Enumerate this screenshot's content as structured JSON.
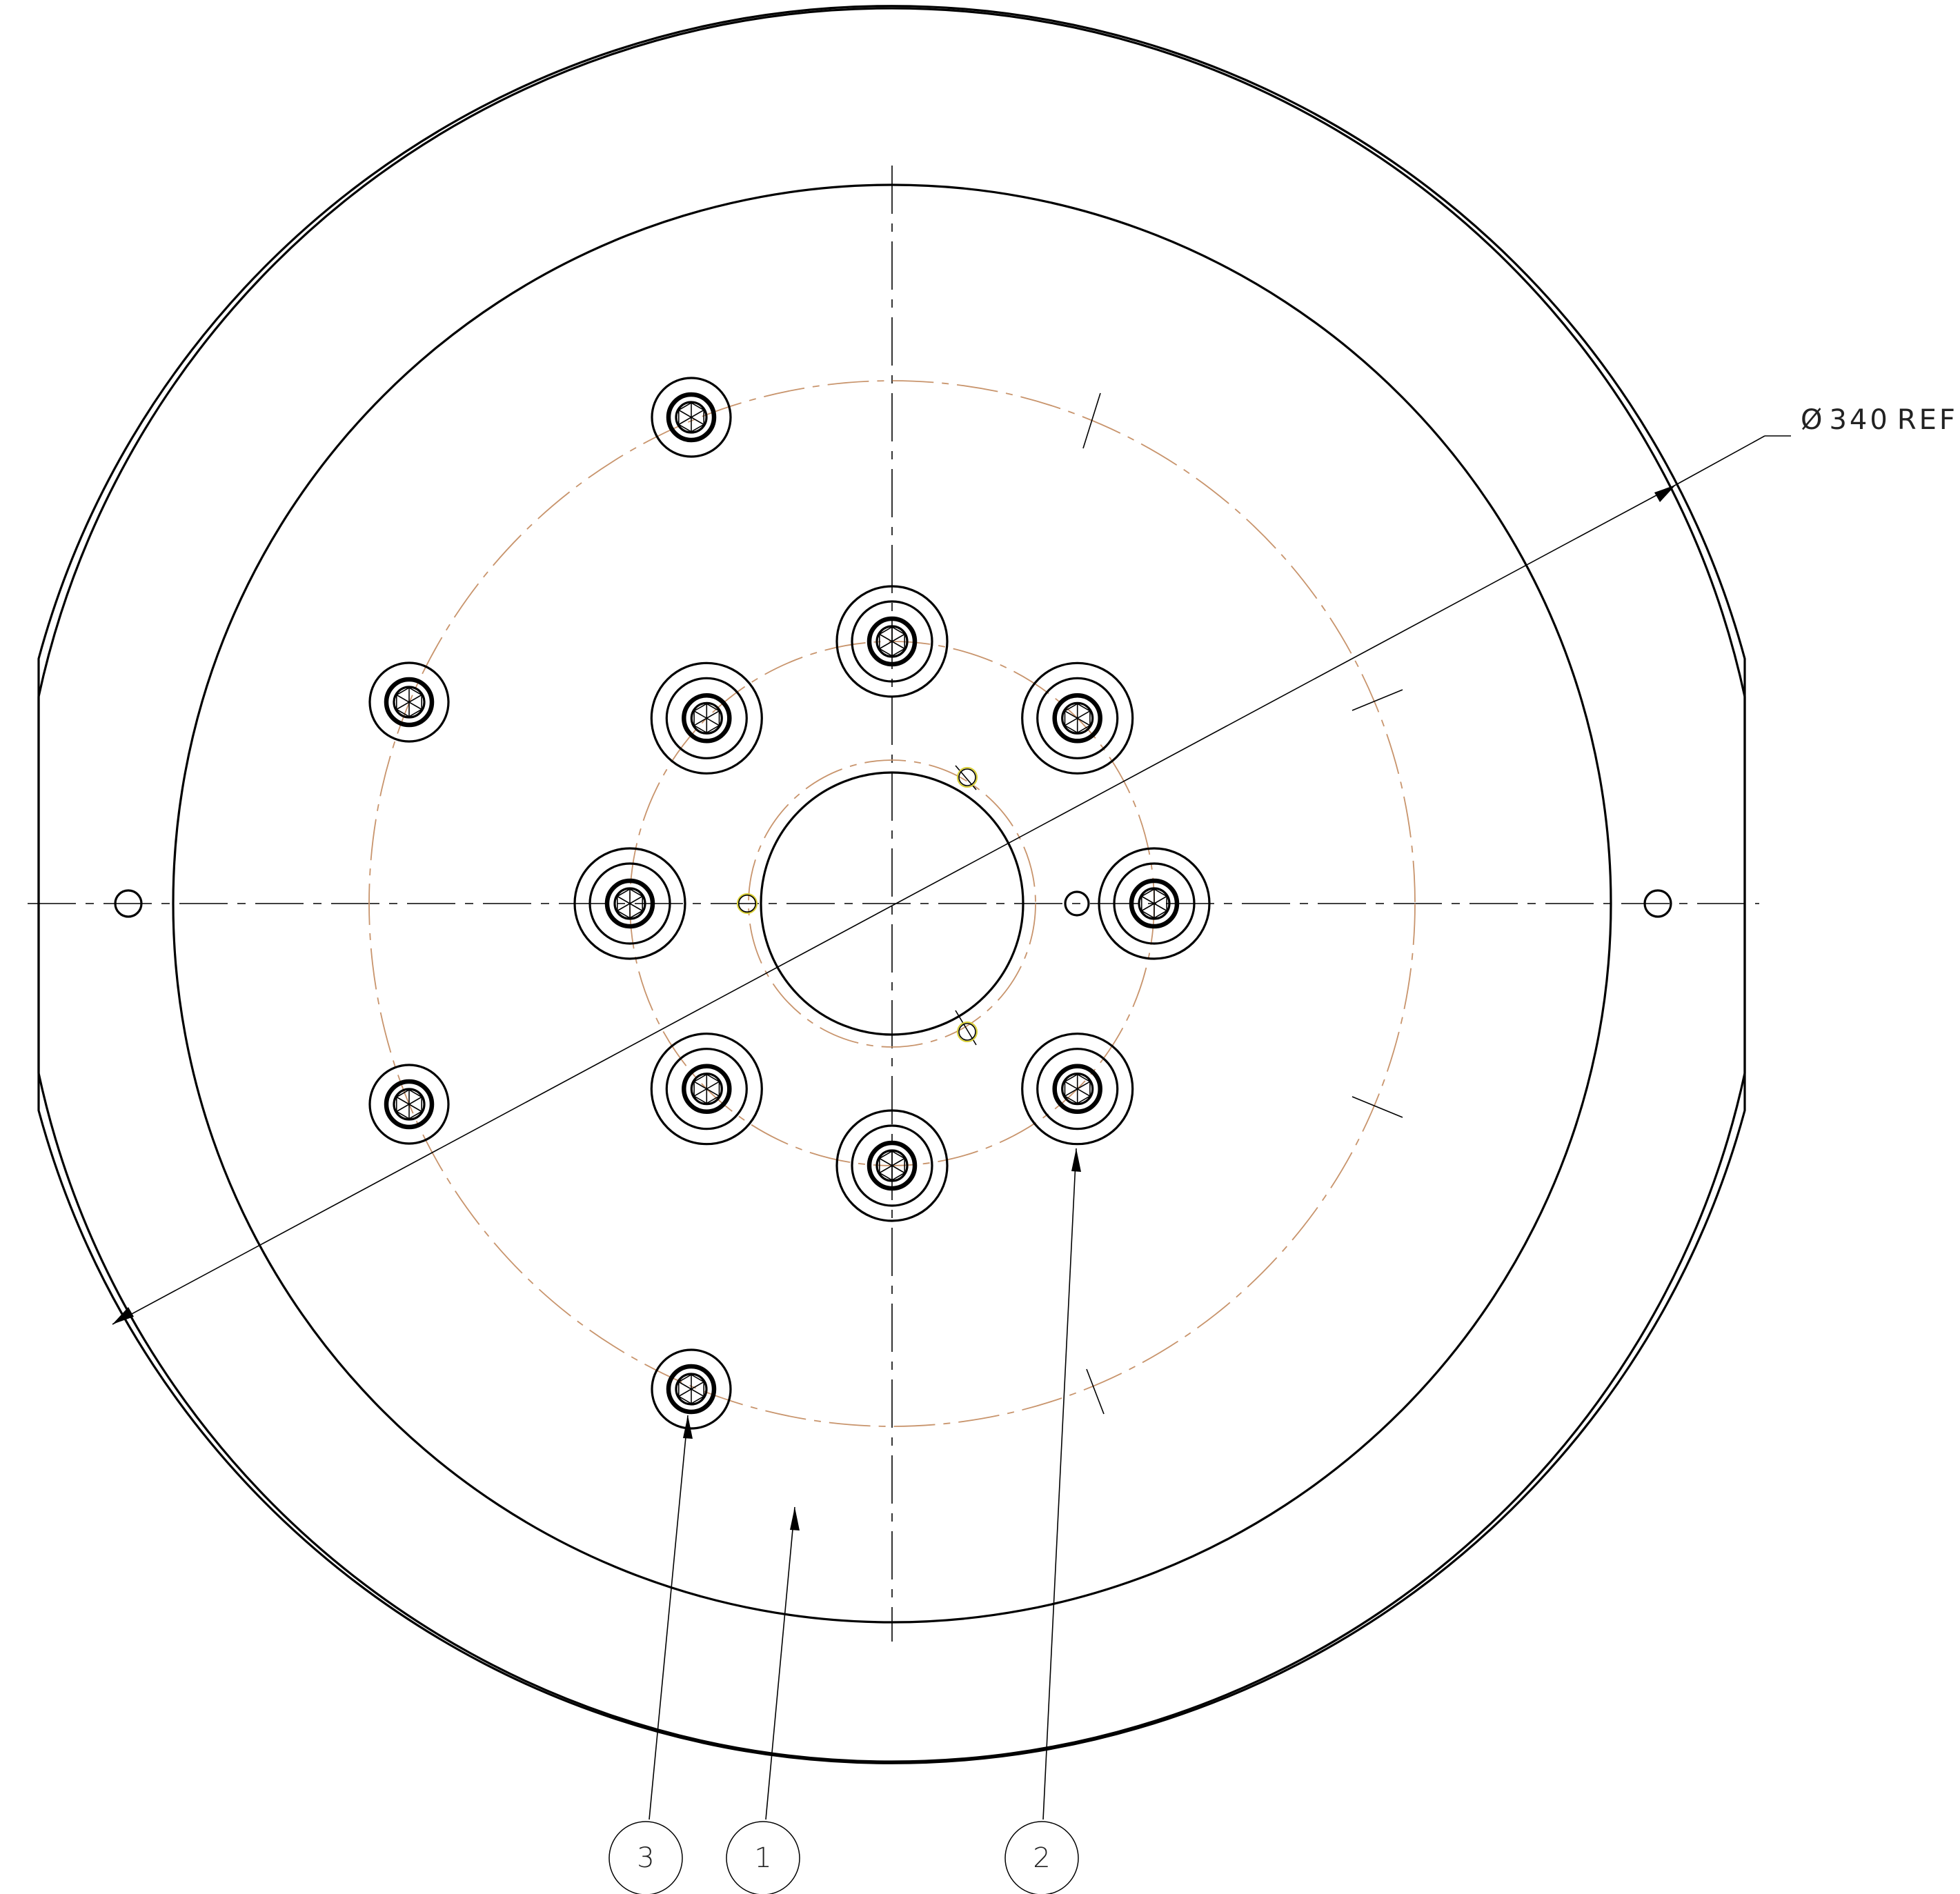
{
  "dimension": {
    "symbol": "Ø",
    "value": "340",
    "suffix": "REF"
  },
  "balloons": [
    {
      "id": "balloon-3",
      "label": "3"
    },
    {
      "id": "balloon-1",
      "label": "1"
    },
    {
      "id": "balloon-2",
      "label": "2"
    }
  ],
  "colors": {
    "outline": "#000000",
    "pitch_circle": "#c8946c",
    "hole_highlight": "#d9cf34"
  }
}
